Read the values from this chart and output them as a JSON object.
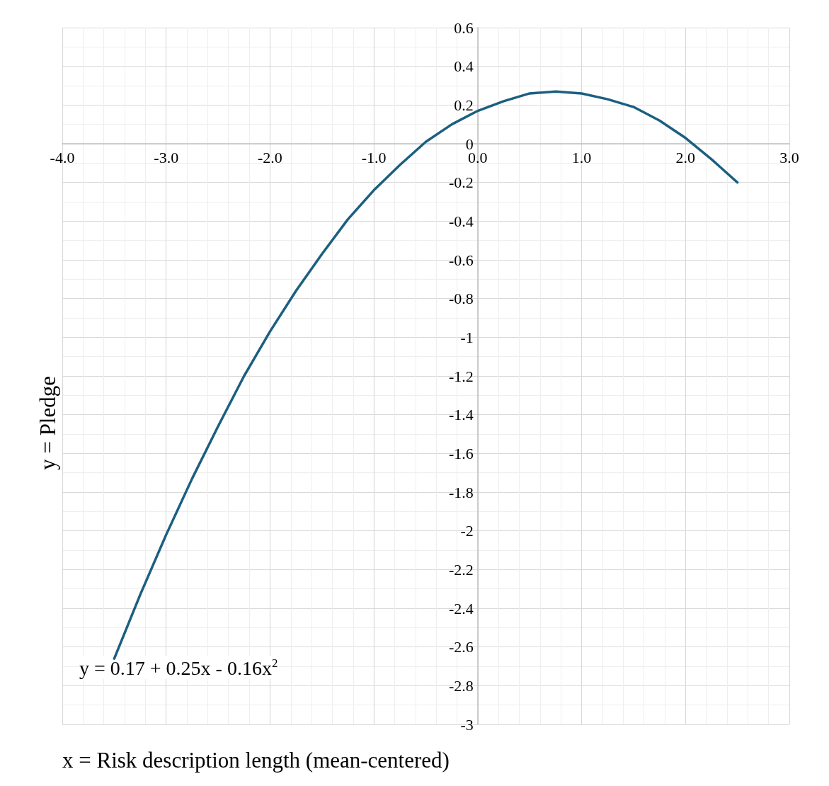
{
  "chart_data": {
    "type": "line",
    "xlabel": "x = Risk description length (mean-centered)",
    "ylabel": "y = Pledge",
    "annotations": [
      "y = 0.17 + 0.25x - 0.16x$^{2}$"
    ],
    "x": [
      -3.5,
      -3.25,
      -3,
      -2.75,
      -2.5,
      -2.25,
      -2,
      -1.75,
      -1.5,
      -1.25,
      -1,
      -0.75,
      -0.5,
      -0.25,
      0,
      0.25,
      0.5,
      0.75,
      1,
      1.25,
      1.5,
      1.75,
      2,
      2.25,
      2.5
    ],
    "series": [
      {
        "color": "#1b5f80",
        "values": [
          -2.66,
          -2.33,
          -2.02,
          -1.73,
          -1.46,
          -1.2,
          -0.97,
          -0.76,
          -0.57,
          -0.39,
          -0.24,
          -0.11,
          0.01,
          0.1,
          0.17,
          0.22,
          0.26,
          0.27,
          0.26,
          0.23,
          0.19,
          0.12,
          0.03,
          -0.08,
          -0.2
        ]
      }
    ],
    "xlim": [
      -4,
      3
    ],
    "xticks": [
      {
        "value": -4,
        "label": "-4.0"
      },
      {
        "value": -3,
        "label": "-3.0"
      },
      {
        "value": -2,
        "label": "-2.0"
      },
      {
        "value": -1,
        "label": "-1.0"
      },
      {
        "value": 0,
        "label": "0.0"
      },
      {
        "value": 1,
        "label": "1.0"
      },
      {
        "value": 2,
        "label": "2.0"
      },
      {
        "value": 3,
        "label": "3.0"
      }
    ],
    "ylim": [
      -3,
      0.6
    ],
    "yticks": [
      -3,
      -2.8,
      -2.6,
      -2.4,
      -2.2,
      -2,
      -1.8,
      -1.6,
      -1.4,
      -1.2,
      -1,
      -0.8,
      -0.6,
      -0.4,
      -0.2,
      0,
      0.2,
      0.4,
      0.6
    ],
    "grid": true,
    "marker": "none",
    "line_style": "solid"
  }
}
